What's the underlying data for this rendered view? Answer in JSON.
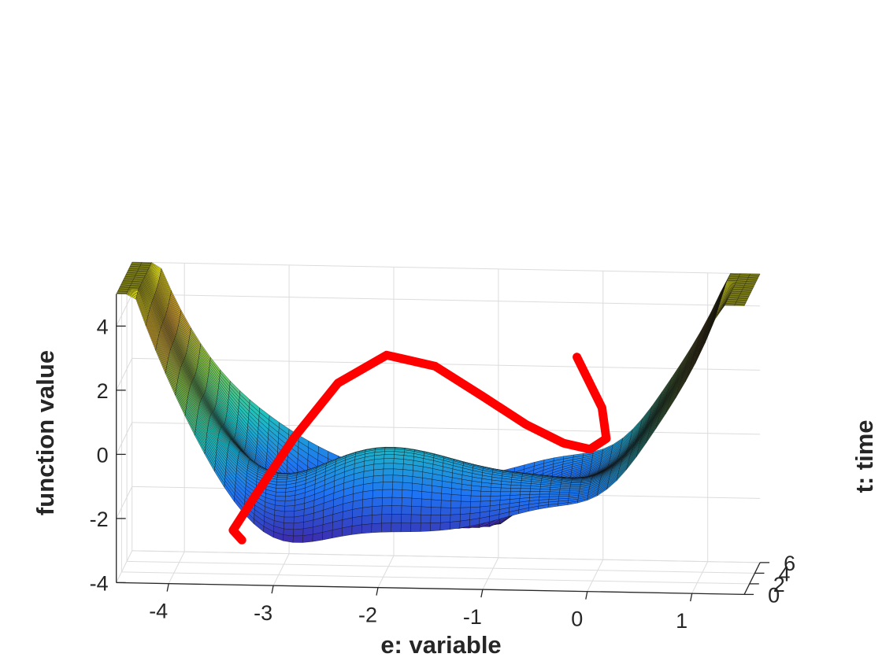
{
  "chart_data": {
    "type": "surface",
    "title": "",
    "xlabel": "e: variable",
    "ylabel": "t: time",
    "zlabel": "function value",
    "xlim": [
      -4.5,
      1.5
    ],
    "ylim": [
      0,
      6
    ],
    "zlim": [
      -4,
      5
    ],
    "x_ticks": [
      "-4",
      "-3",
      "-2",
      "-1",
      "0",
      "1"
    ],
    "y_ticks": [
      "0",
      "2",
      "4",
      "6"
    ],
    "z_ticks": [
      "-4",
      "-2",
      "0",
      "2",
      "4"
    ],
    "grid": true,
    "colormap": [
      "#3e26a8",
      "#1f74f3",
      "#1fc1bd",
      "#86cc4c",
      "#f0b436",
      "#f9fb15"
    ],
    "series": [
      {
        "type": "line3d",
        "color": "#ff0000",
        "points": [
          {
            "e": -3.3,
            "t": 0.0,
            "z": -2.6
          },
          {
            "e": -3.4,
            "t": 0.6,
            "z": -2.4
          },
          {
            "e": -3.2,
            "t": 1.3,
            "z": -1.4
          },
          {
            "e": -2.85,
            "t": 2.0,
            "z": 0.3
          },
          {
            "e": -2.45,
            "t": 2.7,
            "z": 1.9
          },
          {
            "e": -2.0,
            "t": 3.3,
            "z": 2.7
          },
          {
            "e": -1.55,
            "t": 3.8,
            "z": 2.3
          },
          {
            "e": -1.1,
            "t": 4.25,
            "z": 1.3
          },
          {
            "e": -0.7,
            "t": 4.6,
            "z": 0.4
          },
          {
            "e": -0.35,
            "t": 4.85,
            "z": -0.2
          },
          {
            "e": -0.1,
            "t": 5.0,
            "z": -0.4
          },
          {
            "e": 0.05,
            "t": 5.25,
            "z": -0.1
          },
          {
            "e": 0.0,
            "t": 5.6,
            "z": 0.8
          },
          {
            "e": -0.25,
            "t": 6.0,
            "z": 2.3
          }
        ]
      }
    ]
  }
}
